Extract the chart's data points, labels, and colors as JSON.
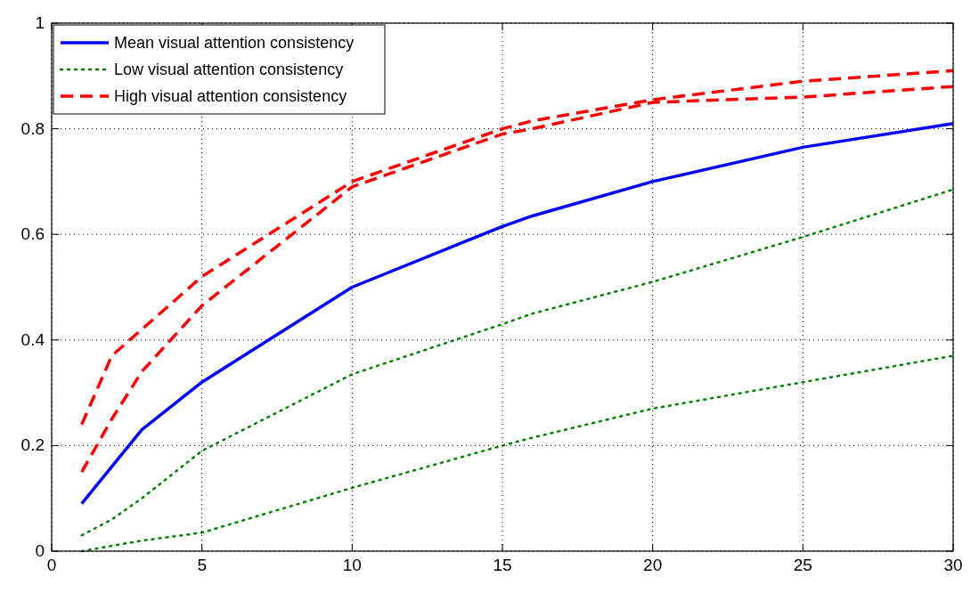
{
  "chart_data": {
    "type": "line",
    "x": [
      1,
      2,
      3,
      5,
      10,
      15,
      16,
      20,
      25,
      30
    ],
    "xlim": [
      0,
      30
    ],
    "xticks": [
      0,
      5,
      10,
      15,
      20,
      25,
      30
    ],
    "ylim": [
      0,
      1
    ],
    "yticks": [
      0,
      0.2,
      0.4,
      0.6,
      0.8,
      1
    ],
    "grid": true,
    "legend": "top left",
    "series": [
      {
        "name": "Mean visual attention consistency",
        "color": "#0000ff",
        "line_style": "solid",
        "values": [
          0.09,
          0.16,
          0.23,
          0.32,
          0.5,
          0.615,
          0.635,
          0.7,
          0.765,
          0.81
        ]
      },
      {
        "name": "Low visual attention consistency",
        "color": "#008000",
        "line_style": "dotted",
        "values": [
          0.03,
          0.06,
          0.1,
          0.19,
          0.335,
          0.43,
          0.45,
          0.51,
          0.595,
          0.685
        ]
      },
      {
        "color": "#008000",
        "line_style": "dotted",
        "values": [
          0.0,
          0.01,
          0.02,
          0.035,
          0.12,
          0.2,
          0.215,
          0.27,
          0.32,
          0.37
        ]
      },
      {
        "name": "High visual attention consistency",
        "color": "#ff0000",
        "line_style": "dashed",
        "values": [
          0.24,
          0.37,
          0.42,
          0.52,
          0.7,
          0.8,
          0.815,
          0.855,
          0.89,
          0.91
        ]
      },
      {
        "color": "#ff0000",
        "line_style": "dashed",
        "values": [
          0.15,
          0.25,
          0.34,
          0.465,
          0.69,
          0.79,
          0.8,
          0.85,
          0.86,
          0.88
        ]
      }
    ]
  }
}
